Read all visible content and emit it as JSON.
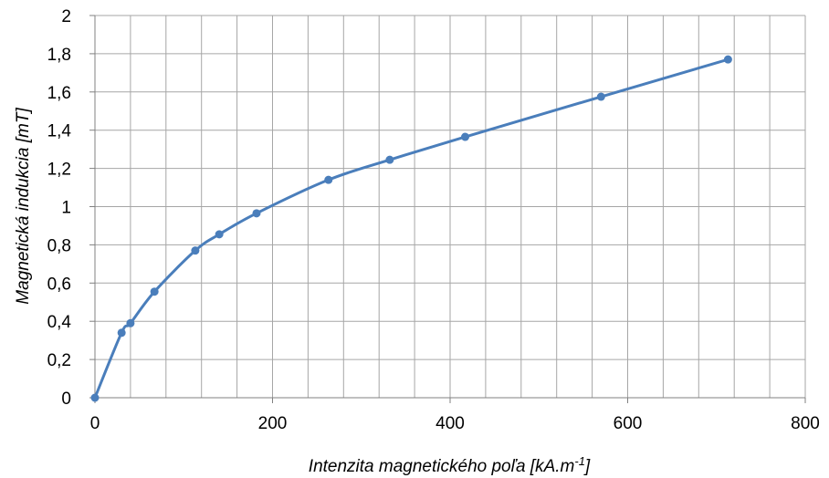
{
  "chart_data": {
    "type": "line",
    "title": "",
    "xlabel": "Intenzita magnetického poľa [kA.m",
    "xlabel_sup": "-1",
    "xlabel_end": "]",
    "ylabel": "Magnetická indukcia [mT]",
    "xlim": [
      0,
      800
    ],
    "ylim": [
      0,
      2
    ],
    "x_ticks": [
      "0",
      "200",
      "400",
      "600",
      "800"
    ],
    "y_ticks": [
      "0",
      "0,2",
      "0,4",
      "0,6",
      "0,8",
      "1",
      "1,2",
      "1,4",
      "1,6",
      "1,8",
      "2"
    ],
    "x_tick_values": [
      0,
      200,
      400,
      600,
      800
    ],
    "y_tick_values": [
      0,
      0.2,
      0.4,
      0.6,
      0.8,
      1.0,
      1.2,
      1.4,
      1.6,
      1.8,
      2.0
    ],
    "x_minor_step": 40,
    "grid": true,
    "line_color": "#4a7ebb",
    "marker_color": "#4a7ebb",
    "smooth": true,
    "series": [
      {
        "x": [
          0,
          30,
          40,
          67,
          113,
          140,
          182,
          263,
          332,
          417,
          570,
          713
        ],
        "y": [
          0,
          0.34,
          0.39,
          0.555,
          0.77,
          0.855,
          0.965,
          1.14,
          1.245,
          1.365,
          1.575,
          1.77
        ]
      }
    ]
  }
}
